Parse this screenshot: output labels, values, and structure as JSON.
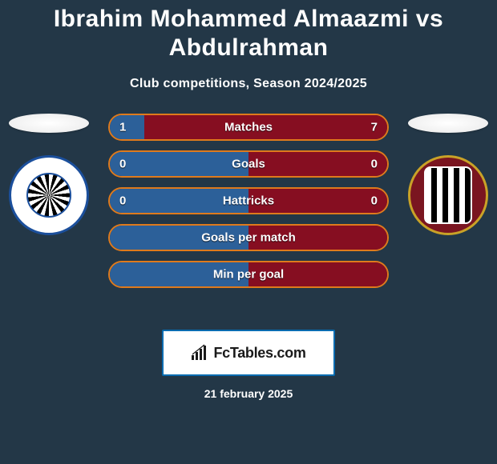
{
  "title": "Ibrahim Mohammed Almaazmi vs Abdulrahman",
  "subtitle": "Club competitions, Season 2024/2025",
  "date": "21 february 2025",
  "logo_text": "FcTables.com",
  "colors": {
    "background": "#233747",
    "left_fill": "#2c6099",
    "right_fill": "#860e21",
    "border_orange": "#df7a1c",
    "text": "#ffffff"
  },
  "left_badge": {
    "name": "Al-Nasr",
    "crest_primary": "#1b4f9c",
    "crest_bg": "#ffffff"
  },
  "right_badge": {
    "name": "Al Jazira Club",
    "crest_bg": "#7a1520",
    "crest_border": "#c9a227"
  },
  "bars": [
    {
      "label": "Matches",
      "left_value": "1",
      "right_value": "7",
      "show_values": true,
      "left_pct": 12.5,
      "right_pct": 87.5
    },
    {
      "label": "Goals",
      "left_value": "0",
      "right_value": "0",
      "show_values": true,
      "left_pct": 50,
      "right_pct": 50
    },
    {
      "label": "Hattricks",
      "left_value": "0",
      "right_value": "0",
      "show_values": true,
      "left_pct": 50,
      "right_pct": 50
    },
    {
      "label": "Goals per match",
      "left_value": "",
      "right_value": "",
      "show_values": false,
      "left_pct": 50,
      "right_pct": 50
    },
    {
      "label": "Min per goal",
      "left_value": "",
      "right_value": "",
      "show_values": false,
      "left_pct": 50,
      "right_pct": 50
    }
  ],
  "bar_style": {
    "height": 34,
    "border_radius": 17,
    "gap": 12,
    "label_fontsize": 15,
    "value_fontsize": 15
  }
}
